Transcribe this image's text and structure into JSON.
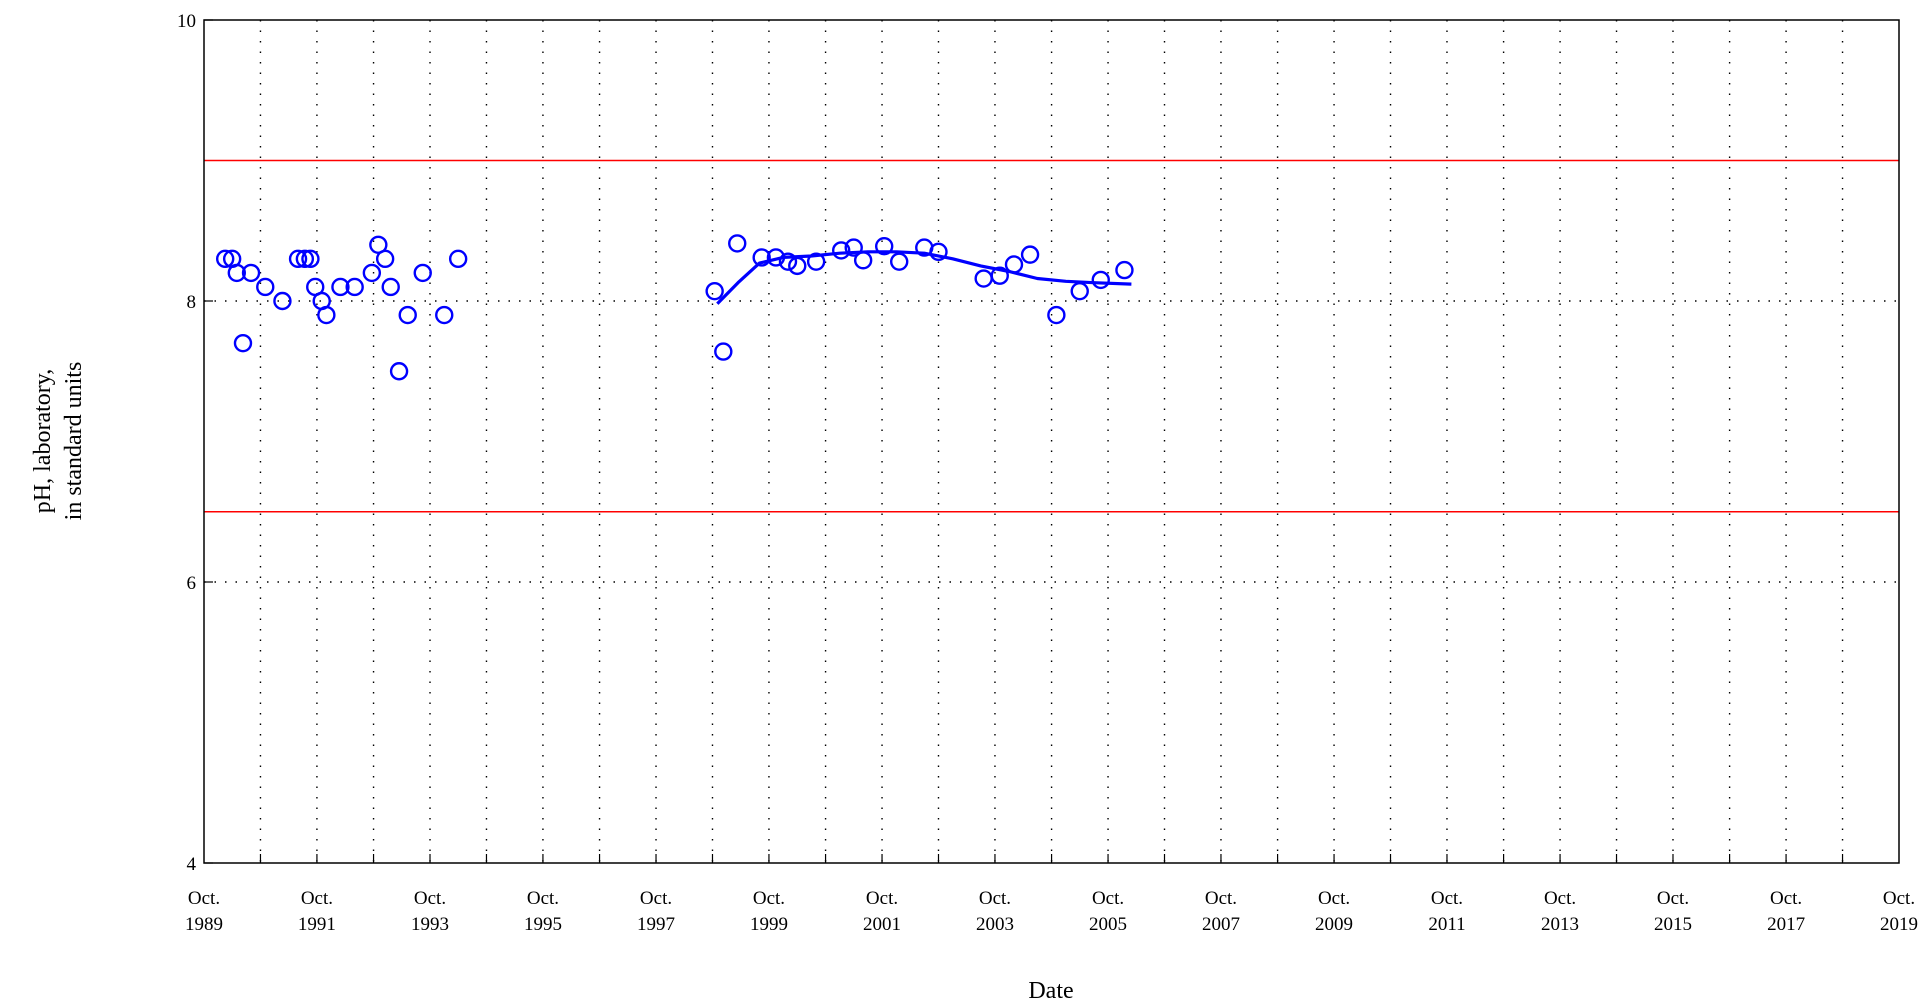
{
  "chart_data": {
    "type": "scatter",
    "title": "",
    "xlabel": "Date",
    "ylabel_lines": [
      "pH, laboratory,",
      "in standard units"
    ],
    "x_axis": {
      "min": "1989-10-01",
      "max": "2019-10-01",
      "tick_labels": [
        {
          "date": "1989-10-01",
          "month": "Oct.",
          "year": "1989"
        },
        {
          "date": "1991-10-01",
          "month": "Oct.",
          "year": "1991"
        },
        {
          "date": "1993-10-01",
          "month": "Oct.",
          "year": "1993"
        },
        {
          "date": "1995-10-01",
          "month": "Oct.",
          "year": "1995"
        },
        {
          "date": "1997-10-01",
          "month": "Oct.",
          "year": "1997"
        },
        {
          "date": "1999-10-01",
          "month": "Oct.",
          "year": "1999"
        },
        {
          "date": "2001-10-01",
          "month": "Oct.",
          "year": "2001"
        },
        {
          "date": "2003-10-01",
          "month": "Oct.",
          "year": "2003"
        },
        {
          "date": "2005-10-01",
          "month": "Oct.",
          "year": "2005"
        },
        {
          "date": "2007-10-01",
          "month": "Oct.",
          "year": "2007"
        },
        {
          "date": "2009-10-01",
          "month": "Oct.",
          "year": "2009"
        },
        {
          "date": "2011-10-01",
          "month": "Oct.",
          "year": "2011"
        },
        {
          "date": "2013-10-01",
          "month": "Oct.",
          "year": "2013"
        },
        {
          "date": "2015-10-01",
          "month": "Oct.",
          "year": "2015"
        },
        {
          "date": "2017-10-01",
          "month": "Oct.",
          "year": "2017"
        },
        {
          "date": "2019-10-01",
          "month": "Oct.",
          "year": "2019"
        }
      ],
      "gridlines": "yearly, dotted"
    },
    "y_axis": {
      "min": 4,
      "max": 10,
      "ticks": [
        4,
        6,
        8,
        10
      ],
      "gridlines": [
        6,
        8
      ]
    },
    "reference_lines": [
      {
        "y": 9.0,
        "color": "#ff0000"
      },
      {
        "y": 6.5,
        "color": "#ff0000"
      }
    ],
    "series": [
      {
        "marker": "open-circle",
        "color": "#0000ff",
        "points": [
          [
            "1990-02-15",
            8.3
          ],
          [
            "1990-04-01",
            8.3
          ],
          [
            "1990-05-01",
            8.2
          ],
          [
            "1990-06-10",
            7.7
          ],
          [
            "1990-08-01",
            8.2
          ],
          [
            "1990-11-01",
            8.1
          ],
          [
            "1991-02-20",
            8.0
          ],
          [
            "1991-06-01",
            8.3
          ],
          [
            "1991-07-15",
            8.3
          ],
          [
            "1991-08-20",
            8.3
          ],
          [
            "1991-09-20",
            8.1
          ],
          [
            "1991-11-01",
            8.0
          ],
          [
            "1991-12-01",
            7.9
          ],
          [
            "1992-03-01",
            8.1
          ],
          [
            "1992-06-01",
            8.1
          ],
          [
            "1992-09-20",
            8.2
          ],
          [
            "1992-11-01",
            8.4
          ],
          [
            "1992-12-15",
            8.3
          ],
          [
            "1993-01-20",
            8.1
          ],
          [
            "1993-03-15",
            7.5
          ],
          [
            "1993-05-10",
            7.9
          ],
          [
            "1993-08-15",
            8.2
          ],
          [
            "1994-01-01",
            7.9
          ],
          [
            "1994-04-01",
            8.3
          ],
          [
            "1998-10-15",
            8.07
          ],
          [
            "1998-12-10",
            7.64
          ],
          [
            "1999-03-10",
            8.41
          ],
          [
            "1999-08-15",
            8.31
          ],
          [
            "1999-11-15",
            8.31
          ],
          [
            "2000-02-01",
            8.28
          ],
          [
            "2000-04-01",
            8.25
          ],
          [
            "2000-08-01",
            8.28
          ],
          [
            "2001-01-10",
            8.36
          ],
          [
            "2001-04-01",
            8.38
          ],
          [
            "2001-06-01",
            8.29
          ],
          [
            "2001-10-15",
            8.39
          ],
          [
            "2002-01-20",
            8.28
          ],
          [
            "2002-07-01",
            8.38
          ],
          [
            "2002-10-01",
            8.35
          ],
          [
            "2003-07-20",
            8.16
          ],
          [
            "2003-11-01",
            8.18
          ],
          [
            "2004-02-01",
            8.26
          ],
          [
            "2004-05-15",
            8.33
          ],
          [
            "2004-11-01",
            7.9
          ],
          [
            "2005-04-01",
            8.07
          ],
          [
            "2005-08-15",
            8.15
          ],
          [
            "2006-01-15",
            8.22
          ]
        ]
      },
      {
        "marker": "line",
        "color": "#0000ff",
        "points": [
          [
            "1998-11-01",
            7.98
          ],
          [
            "1999-03-15",
            8.13
          ],
          [
            "1999-08-01",
            8.27
          ],
          [
            "2000-01-01",
            8.31
          ],
          [
            "2000-07-01",
            8.32
          ],
          [
            "2001-01-01",
            8.34
          ],
          [
            "2001-07-01",
            8.35
          ],
          [
            "2002-01-01",
            8.35
          ],
          [
            "2002-07-01",
            8.34
          ],
          [
            "2003-01-01",
            8.3
          ],
          [
            "2003-07-01",
            8.25
          ],
          [
            "2004-01-01",
            8.21
          ],
          [
            "2004-07-01",
            8.16
          ],
          [
            "2005-01-01",
            8.14
          ],
          [
            "2005-07-01",
            8.13
          ],
          [
            "2006-03-01",
            8.12
          ]
        ]
      }
    ]
  }
}
